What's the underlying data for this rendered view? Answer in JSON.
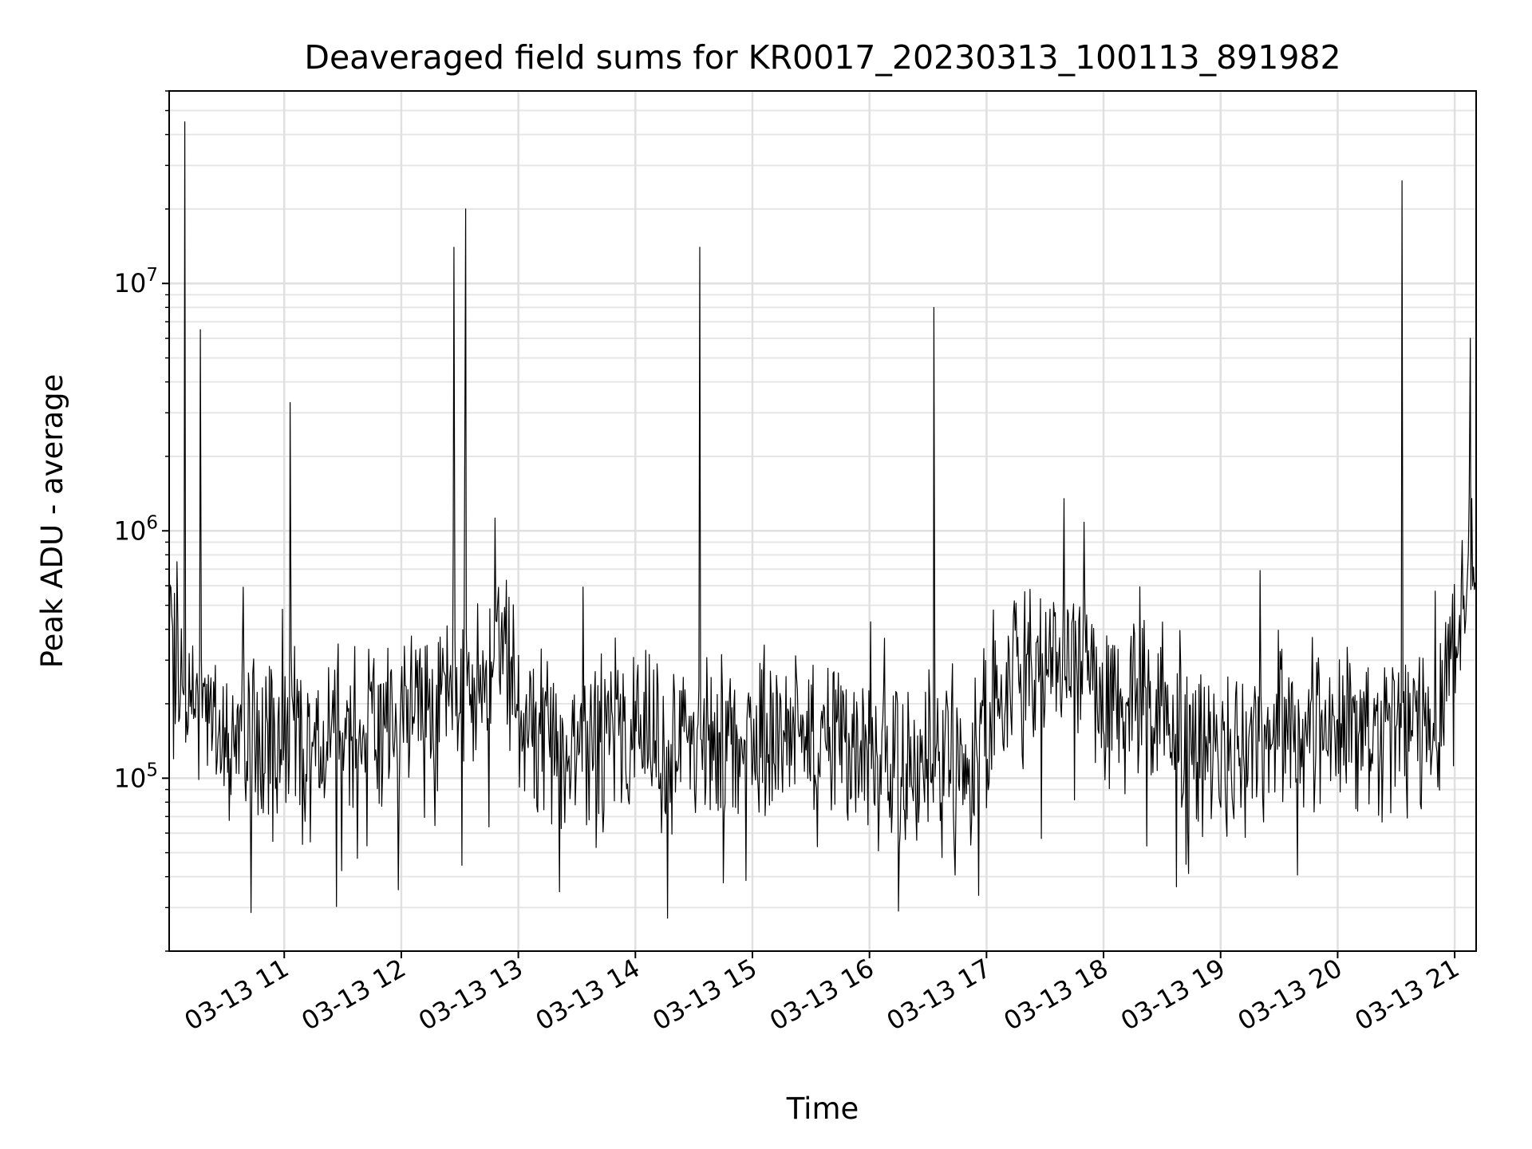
{
  "chart_data": {
    "type": "line",
    "title": "Deaveraged field sums for KR0017_20230313_100113_891982",
    "xlabel": "Time",
    "ylabel": "Peak ADU - average",
    "y_scale": "log",
    "ylim": [
      20000,
      60000000
    ],
    "xlim": [
      "2023-03-13 10:01",
      "2023-03-13 21:11"
    ],
    "grid": true,
    "grid_minor": true,
    "line_color": "#000000",
    "x_ticks": [
      {
        "value": "2023-03-13 11:00",
        "label": "03-13 11"
      },
      {
        "value": "2023-03-13 12:00",
        "label": "03-13 12"
      },
      {
        "value": "2023-03-13 13:00",
        "label": "03-13 13"
      },
      {
        "value": "2023-03-13 14:00",
        "label": "03-13 14"
      },
      {
        "value": "2023-03-13 15:00",
        "label": "03-13 15"
      },
      {
        "value": "2023-03-13 16:00",
        "label": "03-13 16"
      },
      {
        "value": "2023-03-13 17:00",
        "label": "03-13 17"
      },
      {
        "value": "2023-03-13 18:00",
        "label": "03-13 18"
      },
      {
        "value": "2023-03-13 19:00",
        "label": "03-13 19"
      },
      {
        "value": "2023-03-13 20:00",
        "label": "03-13 20"
      },
      {
        "value": "2023-03-13 21:00",
        "label": "03-13 21"
      }
    ],
    "y_ticks": [
      {
        "value": 100000,
        "base": "10",
        "exp": "5"
      },
      {
        "value": 1000000,
        "base": "10",
        "exp": "6"
      },
      {
        "value": 10000000,
        "base": "10",
        "exp": "7"
      }
    ],
    "series": [
      {
        "x": [
          "2023-03-13 10:01",
          "2023-03-13 10:10",
          "2023-03-13 10:20",
          "2023-03-13 10:30",
          "2023-03-13 10:40",
          "2023-03-13 10:50",
          "2023-03-13 11:00",
          "2023-03-13 11:10",
          "2023-03-13 11:20",
          "2023-03-13 11:30",
          "2023-03-13 11:40",
          "2023-03-13 11:50",
          "2023-03-13 12:00",
          "2023-03-13 12:10",
          "2023-03-13 12:20",
          "2023-03-13 12:30",
          "2023-03-13 12:40",
          "2023-03-13 12:50",
          "2023-03-13 13:00",
          "2023-03-13 13:10",
          "2023-03-13 13:20",
          "2023-03-13 13:30",
          "2023-03-13 13:40",
          "2023-03-13 13:50",
          "2023-03-13 14:00",
          "2023-03-13 14:10",
          "2023-03-13 14:20",
          "2023-03-13 14:30",
          "2023-03-13 14:40",
          "2023-03-13 14:50",
          "2023-03-13 15:00",
          "2023-03-13 15:10",
          "2023-03-13 15:20",
          "2023-03-13 15:30",
          "2023-03-13 15:40",
          "2023-03-13 15:50",
          "2023-03-13 16:00",
          "2023-03-13 16:10",
          "2023-03-13 16:20",
          "2023-03-13 16:30",
          "2023-03-13 16:40",
          "2023-03-13 16:50",
          "2023-03-13 17:00",
          "2023-03-13 17:10",
          "2023-03-13 17:20",
          "2023-03-13 17:30",
          "2023-03-13 17:40",
          "2023-03-13 17:50",
          "2023-03-13 18:00",
          "2023-03-13 18:10",
          "2023-03-13 18:20",
          "2023-03-13 18:30",
          "2023-03-13 18:40",
          "2023-03-13 18:50",
          "2023-03-13 19:00",
          "2023-03-13 19:10",
          "2023-03-13 19:20",
          "2023-03-13 19:30",
          "2023-03-13 19:40",
          "2023-03-13 19:50",
          "2023-03-13 20:00",
          "2023-03-13 20:10",
          "2023-03-13 20:20",
          "2023-03-13 20:30",
          "2023-03-13 20:40",
          "2023-03-13 20:50",
          "2023-03-13 21:00",
          "2023-03-13 21:10"
        ],
        "y": [
          300000,
          220000,
          180000,
          160000,
          150000,
          130000,
          150000,
          140000,
          150000,
          180000,
          150000,
          170000,
          180000,
          190000,
          200000,
          210000,
          260000,
          320000,
          180000,
          150000,
          140000,
          130000,
          130000,
          150000,
          150000,
          140000,
          140000,
          150000,
          150000,
          150000,
          150000,
          140000,
          140000,
          140000,
          140000,
          140000,
          120000,
          110000,
          110000,
          110000,
          100000,
          110000,
          170000,
          250000,
          260000,
          280000,
          300000,
          350000,
          200000,
          180000,
          220000,
          200000,
          150000,
          130000,
          130000,
          130000,
          140000,
          140000,
          160000,
          180000,
          170000,
          160000,
          160000,
          160000,
          160000,
          170000,
          400000,
          700000
        ],
        "spikes": [
          {
            "x": "2023-03-13 10:09",
            "y": 45000000
          },
          {
            "x": "2023-03-13 10:17",
            "y": 6500000
          },
          {
            "x": "2023-03-13 11:03",
            "y": 3300000
          },
          {
            "x": "2023-03-13 12:27",
            "y": 14000000
          },
          {
            "x": "2023-03-13 12:33",
            "y": 20000000
          },
          {
            "x": "2023-03-13 14:33",
            "y": 14000000
          },
          {
            "x": "2023-03-13 16:33",
            "y": 8000000
          },
          {
            "x": "2023-03-13 20:33",
            "y": 26000000
          },
          {
            "x": "2023-03-13 21:08",
            "y": 6000000
          }
        ]
      }
    ]
  }
}
